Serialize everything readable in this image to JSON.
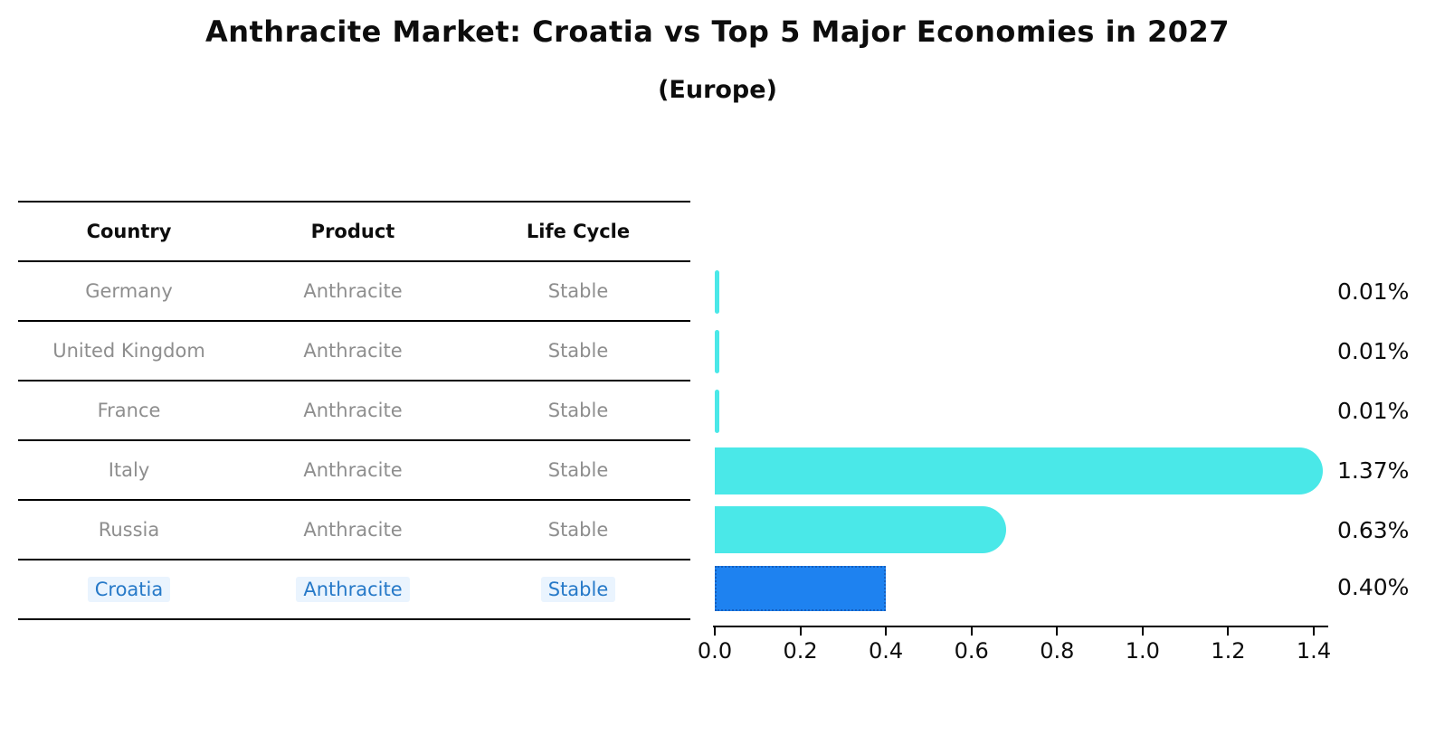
{
  "title": "Anthracite Market: Croatia vs Top 5 Major Economies in 2027",
  "subtitle": "(Europe)",
  "table": {
    "headers": {
      "country": "Country",
      "product": "Product",
      "life_cycle": "Life Cycle"
    },
    "rows": [
      {
        "country": "Germany",
        "product": "Anthracite",
        "life_cycle": "Stable"
      },
      {
        "country": "United Kingdom",
        "product": "Anthracite",
        "life_cycle": "Stable"
      },
      {
        "country": "France",
        "product": "Anthracite",
        "life_cycle": "Stable"
      },
      {
        "country": "Italy",
        "product": "Anthracite",
        "life_cycle": "Stable"
      },
      {
        "country": "Russia",
        "product": "Anthracite",
        "life_cycle": "Stable"
      },
      {
        "country": "Croatia",
        "product": "Anthracite",
        "life_cycle": "Stable"
      }
    ]
  },
  "chart_data": {
    "type": "bar",
    "orientation": "horizontal",
    "categories": [
      "Germany",
      "United Kingdom",
      "France",
      "Italy",
      "Russia",
      "Croatia"
    ],
    "values": [
      0.01,
      0.01,
      0.01,
      1.37,
      0.63,
      0.4
    ],
    "value_labels": [
      "0.01%",
      "0.01%",
      "0.01%",
      "1.37%",
      "0.63%",
      "0.40%"
    ],
    "highlight_index": 5,
    "xlim": [
      0.0,
      1.4
    ],
    "x_ticks": [
      "0.0",
      "0.2",
      "0.4",
      "0.6",
      "0.8",
      "1.0",
      "1.2",
      "1.4"
    ],
    "grid": false,
    "legend": "none",
    "bar_color": "#4ae8e8",
    "highlight_color": "#1e82f0",
    "highlight_border_color": "#1560c0",
    "highlight_text_color": "#2679c8",
    "muted_text_color": "#8e8e8e"
  }
}
